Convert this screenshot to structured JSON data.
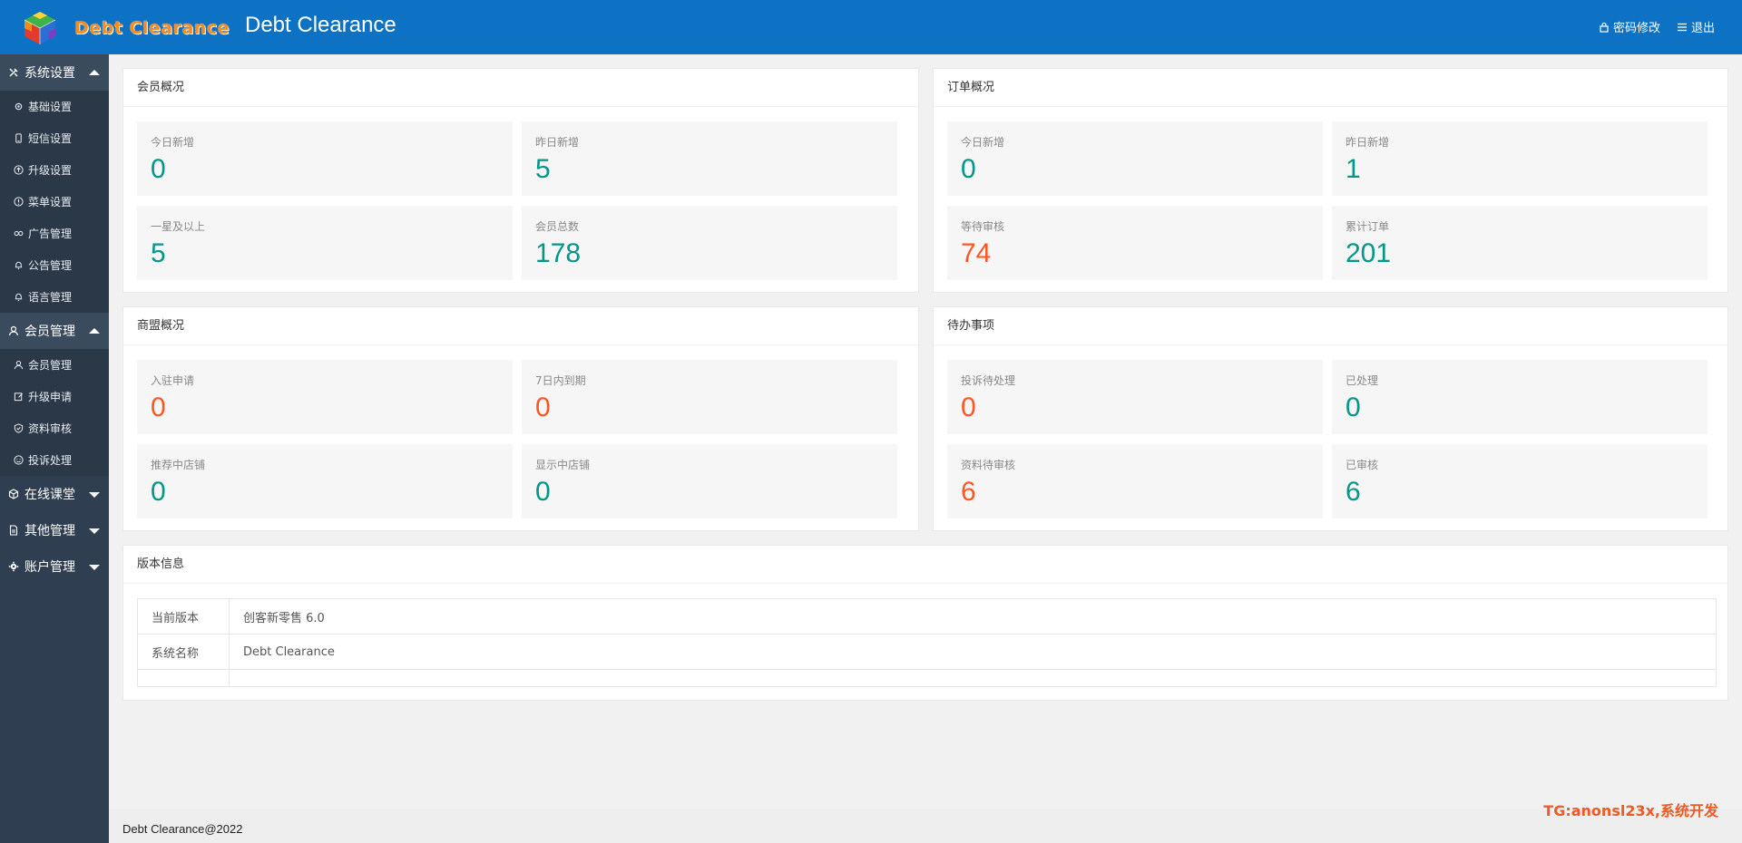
{
  "header": {
    "logo_text": "Debt Clearance",
    "title": "Debt Clearance",
    "change_password": "密码修改",
    "logout": "退出"
  },
  "sidebar": {
    "groups": [
      {
        "label": "系统设置",
        "icon": "tools-icon",
        "expanded": true,
        "items": [
          {
            "label": "基础设置",
            "icon": "gear-icon"
          },
          {
            "label": "短信设置",
            "icon": "phone-icon"
          },
          {
            "label": "升级设置",
            "icon": "upgrade-icon"
          },
          {
            "label": "菜单设置",
            "icon": "info-icon"
          },
          {
            "label": "广告管理",
            "icon": "link-icon"
          },
          {
            "label": "公告管理",
            "icon": "bell-icon"
          },
          {
            "label": "语言管理",
            "icon": "bell-icon"
          }
        ]
      },
      {
        "label": "会员管理",
        "icon": "user-icon",
        "expanded": true,
        "items": [
          {
            "label": "会员管理",
            "icon": "user-icon"
          },
          {
            "label": "升级申请",
            "icon": "edit-icon"
          },
          {
            "label": "资料审核",
            "icon": "shield-icon"
          },
          {
            "label": "投诉处理",
            "icon": "smile-icon"
          }
        ]
      },
      {
        "label": "在线课堂",
        "icon": "box-icon",
        "expanded": false,
        "items": []
      },
      {
        "label": "其他管理",
        "icon": "doc-icon",
        "expanded": false,
        "items": []
      },
      {
        "label": "账户管理",
        "icon": "gear-icon",
        "expanded": false,
        "items": []
      }
    ]
  },
  "panels": {
    "members": {
      "title": "会员概况",
      "stats": [
        {
          "label": "今日新增",
          "value": "0",
          "color": "#009688"
        },
        {
          "label": "昨日新增",
          "value": "5",
          "color": "#009688"
        },
        {
          "label": "一星及以上",
          "value": "5",
          "color": "#009688"
        },
        {
          "label": "会员总数",
          "value": "178",
          "color": "#009688"
        }
      ]
    },
    "orders": {
      "title": "订单概况",
      "stats": [
        {
          "label": "今日新增",
          "value": "0",
          "color": "#009688"
        },
        {
          "label": "昨日新增",
          "value": "1",
          "color": "#009688"
        },
        {
          "label": "等待审核",
          "value": "74",
          "color": "#ff5722"
        },
        {
          "label": "累计订单",
          "value": "201",
          "color": "#009688"
        }
      ]
    },
    "merchants": {
      "title": "商盟概况",
      "stats": [
        {
          "label": "入驻申请",
          "value": "0",
          "color": "#ff5722"
        },
        {
          "label": "7日内到期",
          "value": "0",
          "color": "#ff5722"
        },
        {
          "label": "推荐中店铺",
          "value": "0",
          "color": "#009688"
        },
        {
          "label": "显示中店铺",
          "value": "0",
          "color": "#009688"
        }
      ]
    },
    "todo": {
      "title": "待办事项",
      "stats": [
        {
          "label": "投诉待处理",
          "value": "0",
          "color": "#ff5722"
        },
        {
          "label": "已处理",
          "value": "0",
          "color": "#009688"
        },
        {
          "label": "资料待审核",
          "value": "6",
          "color": "#ff5722"
        },
        {
          "label": "已审核",
          "value": "6",
          "color": "#009688"
        }
      ]
    },
    "version": {
      "title": "版本信息",
      "rows": [
        {
          "key": "当前版本",
          "value": "创客新零售 6.0"
        },
        {
          "key": "系统名称",
          "value": "Debt Clearance"
        }
      ]
    }
  },
  "footer": {
    "text": "Debt Clearance@2022"
  },
  "watermark": "TG:anonsl23x,系统开发"
}
